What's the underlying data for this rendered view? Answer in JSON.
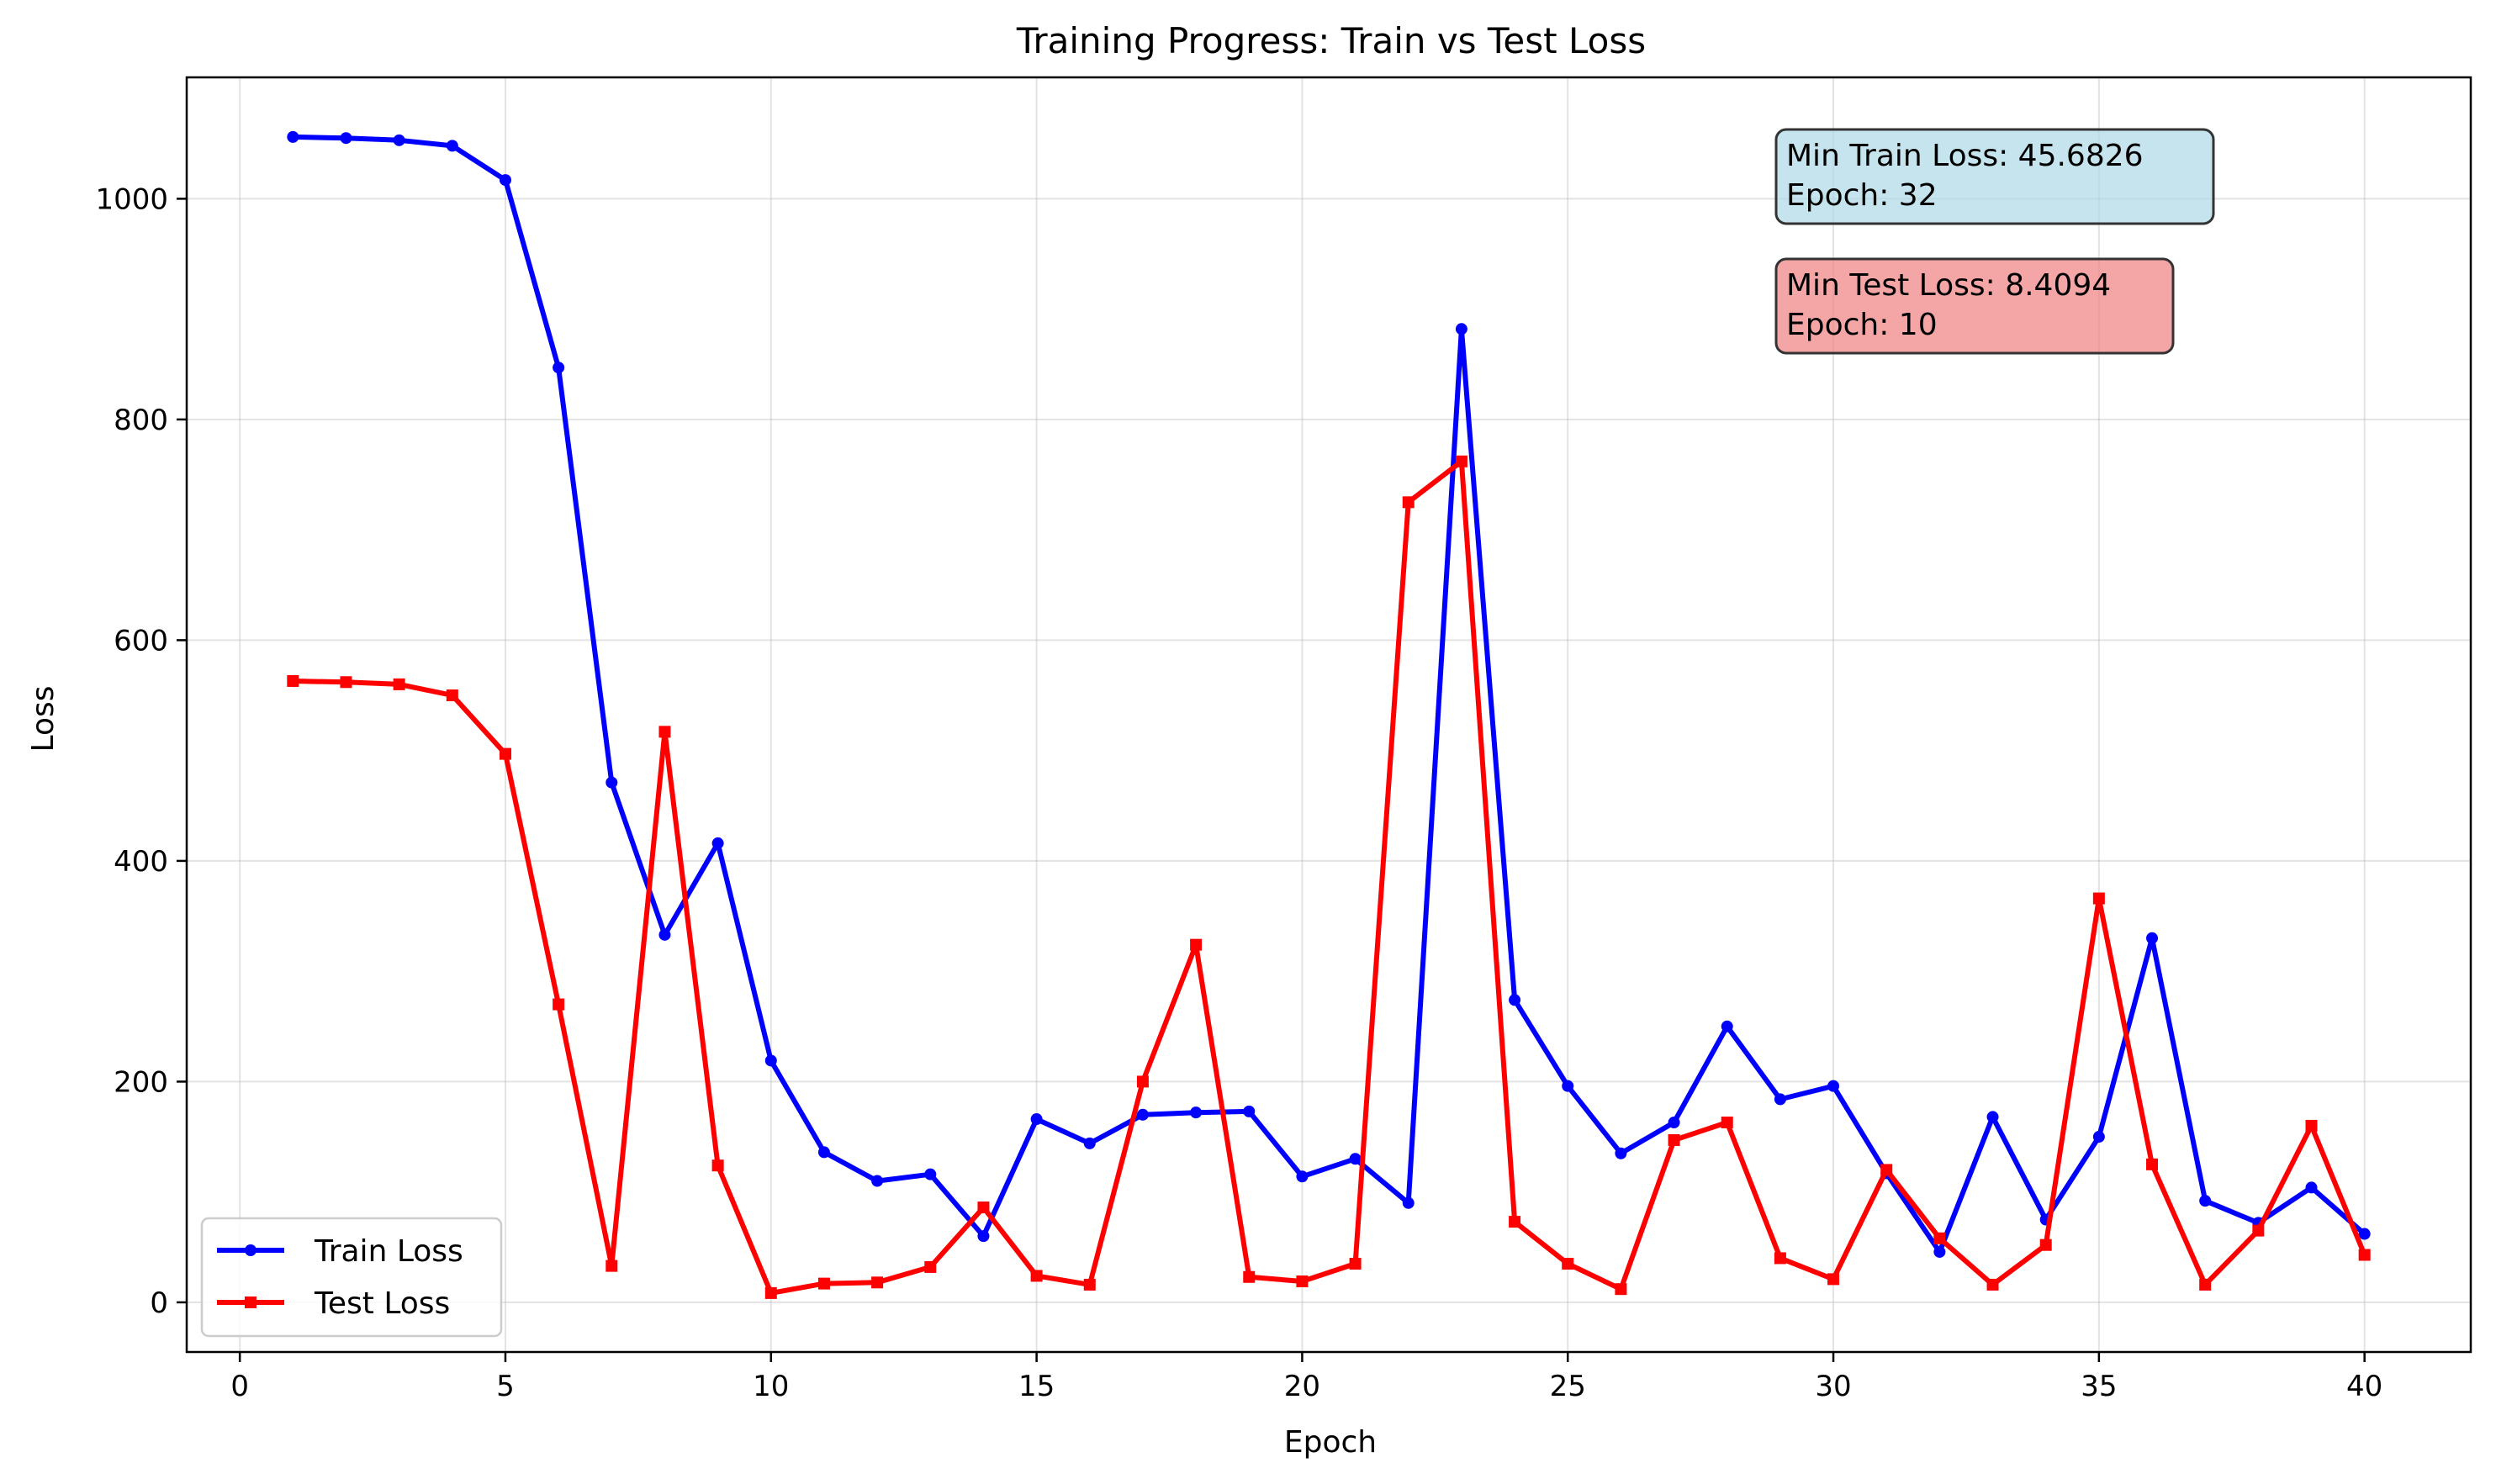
{
  "chart_data": {
    "type": "line",
    "title": "Training Progress: Train vs Test Loss",
    "xlabel": "Epoch",
    "ylabel": "Loss",
    "xlim": [
      -1,
      42
    ],
    "ylim": [
      -45,
      1110
    ],
    "xticks": [
      0,
      5,
      10,
      15,
      20,
      25,
      30,
      35,
      40
    ],
    "yticks": [
      0,
      200,
      400,
      600,
      800,
      1000
    ],
    "grid": true,
    "legend_position": "lower-left",
    "x": [
      1,
      2,
      3,
      4,
      5,
      6,
      7,
      8,
      9,
      10,
      11,
      12,
      13,
      14,
      15,
      16,
      17,
      18,
      19,
      20,
      21,
      22,
      23,
      24,
      25,
      26,
      27,
      28,
      29,
      30,
      31,
      32,
      33,
      34,
      35,
      36,
      37,
      38,
      39,
      40
    ],
    "series": [
      {
        "name": "Train Loss",
        "color": "#0000ff",
        "marker": "circle",
        "values": [
          1056,
          1055,
          1053,
          1048,
          1017,
          847,
          471,
          333,
          416,
          219,
          136,
          110,
          116,
          60,
          166,
          144,
          170,
          172,
          173,
          114,
          130,
          90,
          882,
          274,
          196,
          135,
          163,
          250,
          184,
          196,
          117,
          45.68,
          168,
          75,
          150,
          330,
          92,
          72,
          104,
          62
        ]
      },
      {
        "name": "Test Loss",
        "color": "#ff0000",
        "marker": "square",
        "values": [
          563,
          562,
          560,
          550,
          497,
          270,
          33,
          517,
          124,
          8.41,
          17,
          18,
          32,
          86,
          24,
          16,
          200,
          324,
          23,
          19,
          35,
          725,
          762,
          73,
          35,
          12,
          147,
          163,
          40,
          21,
          120,
          58,
          16,
          52,
          366,
          125,
          16,
          65,
          160,
          43
        ]
      }
    ],
    "annotations": [
      {
        "line1": "Min Train Loss: 45.6826",
        "line2": "Epoch: 32",
        "bg": "#add8e6"
      },
      {
        "line1": "Min Test Loss: 8.4094",
        "line2": "Epoch: 10",
        "bg": "#f08080"
      }
    ]
  }
}
